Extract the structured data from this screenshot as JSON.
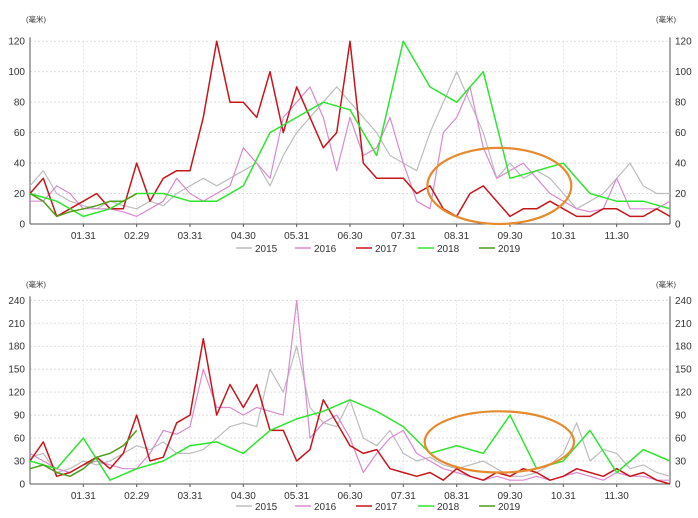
{
  "chart_data": [
    {
      "type": "line",
      "unit_left": "(毫米)",
      "unit_right": "(毫米)",
      "categories": [
        "01.31",
        "02.29",
        "03.31",
        "04.30",
        "05.31",
        "06.30",
        "07.31",
        "08.31",
        "09.30",
        "10.31",
        "11.30"
      ],
      "yticks": [
        0,
        20,
        40,
        60,
        80,
        100,
        120
      ],
      "ylim": [
        0,
        130
      ],
      "xlim": [
        0,
        24
      ],
      "grid": true,
      "legend_position": "bottom",
      "highlight": {
        "x_center": 17.6,
        "y_center": 25,
        "x_radius": 2.7,
        "y_radius": 25,
        "color": "#e58a2e"
      },
      "series": [
        {
          "name": "2015",
          "color": "#bdbdbd",
          "width": 1.2,
          "x": [
            0,
            0.5,
            1,
            1.5,
            2,
            2.5,
            3,
            3.5,
            4,
            4.5,
            5,
            5.5,
            6,
            6.5,
            7,
            7.5,
            8,
            8.5,
            9,
            9.5,
            10,
            10.5,
            11,
            11.5,
            12,
            12.5,
            13,
            13.5,
            14,
            14.5,
            15,
            15.5,
            16,
            16.5,
            17,
            17.5,
            18,
            18.5,
            19,
            19.5,
            20,
            20.5,
            21,
            21.5,
            22,
            22.5,
            23,
            23.5,
            24
          ],
          "y": [
            25,
            35,
            20,
            15,
            12,
            10,
            15,
            12,
            10,
            15,
            12,
            20,
            25,
            30,
            25,
            30,
            35,
            40,
            25,
            45,
            60,
            70,
            80,
            90,
            80,
            70,
            60,
            45,
            40,
            35,
            60,
            80,
            100,
            80,
            60,
            30,
            40,
            30,
            35,
            30,
            20,
            10,
            15,
            20,
            30,
            40,
            25,
            20,
            20
          ]
        },
        {
          "name": "2016",
          "color": "#d98ad0",
          "width": 1.2,
          "x": [
            0,
            0.5,
            1,
            1.5,
            2,
            2.5,
            3,
            3.5,
            4,
            4.5,
            5,
            5.5,
            6,
            6.5,
            7,
            7.5,
            8,
            8.5,
            9,
            9.5,
            10,
            10.5,
            11,
            11.5,
            12,
            12.5,
            13,
            13.5,
            14,
            14.5,
            15,
            15.5,
            16,
            16.5,
            17,
            17.5,
            18,
            18.5,
            19,
            19.5,
            20,
            20.5,
            21,
            21.5,
            22,
            22.5,
            23,
            23.5,
            24
          ],
          "y": [
            15,
            15,
            25,
            20,
            10,
            10,
            10,
            8,
            5,
            10,
            15,
            30,
            20,
            15,
            20,
            25,
            50,
            40,
            30,
            70,
            80,
            90,
            70,
            35,
            70,
            45,
            50,
            70,
            40,
            15,
            10,
            60,
            70,
            90,
            50,
            30,
            35,
            40,
            30,
            20,
            15,
            10,
            8,
            10,
            30,
            10,
            10,
            10,
            15
          ]
        },
        {
          "name": "2017",
          "color": "#c7161b",
          "width": 1.5,
          "x": [
            0,
            0.5,
            1,
            1.5,
            2,
            2.5,
            3,
            3.5,
            4,
            4.5,
            5,
            5.5,
            6,
            6.5,
            7,
            7.5,
            8,
            8.5,
            9,
            9.5,
            10,
            10.5,
            11,
            11.5,
            12,
            12.5,
            13,
            13.5,
            14,
            14.5,
            15,
            15.5,
            16,
            16.5,
            17,
            17.5,
            18,
            18.5,
            19,
            19.5,
            20,
            20.5,
            21,
            21.5,
            22,
            22.5,
            23,
            23.5,
            24
          ],
          "y": [
            20,
            30,
            5,
            10,
            15,
            20,
            10,
            10,
            40,
            15,
            30,
            35,
            35,
            70,
            120,
            80,
            80,
            70,
            100,
            60,
            90,
            70,
            50,
            60,
            120,
            40,
            30,
            30,
            30,
            20,
            25,
            10,
            5,
            20,
            25,
            15,
            5,
            10,
            10,
            15,
            10,
            5,
            5,
            10,
            10,
            5,
            5,
            10,
            5
          ]
        },
        {
          "name": "2018",
          "color": "#2ee52e",
          "width": 1.5,
          "x": [
            0,
            1,
            2,
            3,
            4,
            5,
            6,
            7,
            8,
            9,
            10,
            11,
            12,
            13,
            14,
            15,
            16,
            17,
            18,
            19,
            20,
            21,
            22,
            23,
            24
          ],
          "y": [
            20,
            15,
            5,
            10,
            20,
            20,
            15,
            15,
            25,
            60,
            70,
            80,
            75,
            45,
            120,
            90,
            80,
            100,
            30,
            35,
            40,
            20,
            15,
            15,
            10
          ]
        },
        {
          "name": "2019",
          "color": "#4f9d1a",
          "width": 1.5,
          "x": [
            0,
            0.5,
            1,
            1.5,
            2,
            2.5,
            3,
            3.5,
            4
          ],
          "y": [
            20,
            15,
            5,
            8,
            10,
            12,
            15,
            15,
            20
          ]
        }
      ]
    },
    {
      "type": "line",
      "unit_left": "(毫米)",
      "unit_right": "(毫米)",
      "categories": [
        "01.31",
        "02.29",
        "03.31",
        "04.30",
        "05.31",
        "06.30",
        "07.31",
        "08.31",
        "09.30",
        "10.31",
        "11.30"
      ],
      "yticks": [
        0,
        30,
        60,
        90,
        120,
        150,
        180,
        210,
        240
      ],
      "ylim": [
        0,
        260
      ],
      "xlim": [
        0,
        24
      ],
      "grid": true,
      "legend_position": "bottom",
      "highlight": {
        "x_center": 17.6,
        "y_center": 55,
        "x_radius": 2.8,
        "y_radius": 40,
        "color": "#e58a2e"
      },
      "series": [
        {
          "name": "2015",
          "color": "#bdbdbd",
          "width": 1.2,
          "x": [
            0,
            0.5,
            1,
            1.5,
            2,
            2.5,
            3,
            3.5,
            4,
            4.5,
            5,
            5.5,
            6,
            6.5,
            7,
            7.5,
            8,
            8.5,
            9,
            9.5,
            10,
            10.5,
            11,
            11.5,
            12,
            12.5,
            13,
            13.5,
            14,
            14.5,
            15,
            15.5,
            16,
            16.5,
            17,
            17.5,
            18,
            18.5,
            19,
            19.5,
            20,
            20.5,
            21,
            21.5,
            22,
            22.5,
            23,
            23.5,
            24
          ],
          "y": [
            35,
            40,
            15,
            20,
            30,
            25,
            30,
            40,
            50,
            45,
            55,
            40,
            40,
            45,
            60,
            75,
            80,
            75,
            150,
            120,
            180,
            100,
            80,
            75,
            110,
            60,
            50,
            70,
            40,
            30,
            35,
            25,
            20,
            25,
            30,
            20,
            10,
            10,
            15,
            25,
            40,
            80,
            30,
            45,
            40,
            20,
            25,
            15,
            10
          ]
        },
        {
          "name": "2016",
          "color": "#d98ad0",
          "width": 1.2,
          "x": [
            0,
            0.5,
            1,
            1.5,
            2,
            2.5,
            3,
            3.5,
            4,
            4.5,
            5,
            5.5,
            6,
            6.5,
            7,
            7.5,
            8,
            8.5,
            9,
            9.5,
            10,
            10.5,
            11,
            11.5,
            12,
            12.5,
            13,
            13.5,
            14,
            14.5,
            15,
            15.5,
            16,
            16.5,
            17,
            17.5,
            18,
            18.5,
            19,
            19.5,
            20,
            20.5,
            21,
            21.5,
            22,
            22.5,
            23,
            23.5,
            24
          ],
          "y": [
            40,
            30,
            20,
            15,
            25,
            30,
            25,
            20,
            20,
            40,
            70,
            65,
            75,
            150,
            100,
            100,
            90,
            100,
            95,
            90,
            240,
            60,
            80,
            90,
            60,
            15,
            40,
            60,
            70,
            40,
            30,
            20,
            15,
            10,
            5,
            10,
            5,
            5,
            10,
            5,
            10,
            15,
            10,
            5,
            15,
            10,
            10,
            5,
            5
          ]
        },
        {
          "name": "2017",
          "color": "#c7161b",
          "width": 1.5,
          "x": [
            0,
            0.5,
            1,
            1.5,
            2,
            2.5,
            3,
            3.5,
            4,
            4.5,
            5,
            5.5,
            6,
            6.5,
            7,
            7.5,
            8,
            8.5,
            9,
            9.5,
            10,
            10.5,
            11,
            11.5,
            12,
            12.5,
            13,
            13.5,
            14,
            14.5,
            15,
            15.5,
            16,
            16.5,
            17,
            17.5,
            18,
            18.5,
            19,
            19.5,
            20,
            20.5,
            21,
            21.5,
            22,
            22.5,
            23,
            23.5,
            24
          ],
          "y": [
            30,
            55,
            10,
            15,
            25,
            35,
            20,
            40,
            90,
            30,
            35,
            80,
            90,
            190,
            90,
            130,
            100,
            130,
            70,
            70,
            30,
            45,
            110,
            80,
            50,
            40,
            45,
            20,
            15,
            10,
            15,
            5,
            20,
            10,
            5,
            15,
            10,
            20,
            15,
            5,
            10,
            20,
            15,
            10,
            20,
            10,
            15,
            5,
            0
          ]
        },
        {
          "name": "2018",
          "color": "#2ee52e",
          "width": 1.5,
          "x": [
            0,
            1,
            2,
            3,
            4,
            5,
            6,
            7,
            8,
            9,
            10,
            11,
            12,
            13,
            14,
            15,
            16,
            17,
            18,
            19,
            20,
            21,
            22,
            23,
            24
          ],
          "y": [
            30,
            20,
            60,
            5,
            20,
            30,
            50,
            55,
            40,
            70,
            85,
            95,
            110,
            95,
            75,
            40,
            50,
            40,
            90,
            20,
            30,
            70,
            15,
            45,
            30
          ]
        },
        {
          "name": "2019",
          "color": "#4f9d1a",
          "width": 1.5,
          "x": [
            0,
            0.5,
            1,
            1.5,
            2,
            2.5,
            3,
            3.5,
            4
          ],
          "y": [
            20,
            25,
            15,
            10,
            20,
            35,
            40,
            50,
            70
          ]
        }
      ]
    }
  ]
}
